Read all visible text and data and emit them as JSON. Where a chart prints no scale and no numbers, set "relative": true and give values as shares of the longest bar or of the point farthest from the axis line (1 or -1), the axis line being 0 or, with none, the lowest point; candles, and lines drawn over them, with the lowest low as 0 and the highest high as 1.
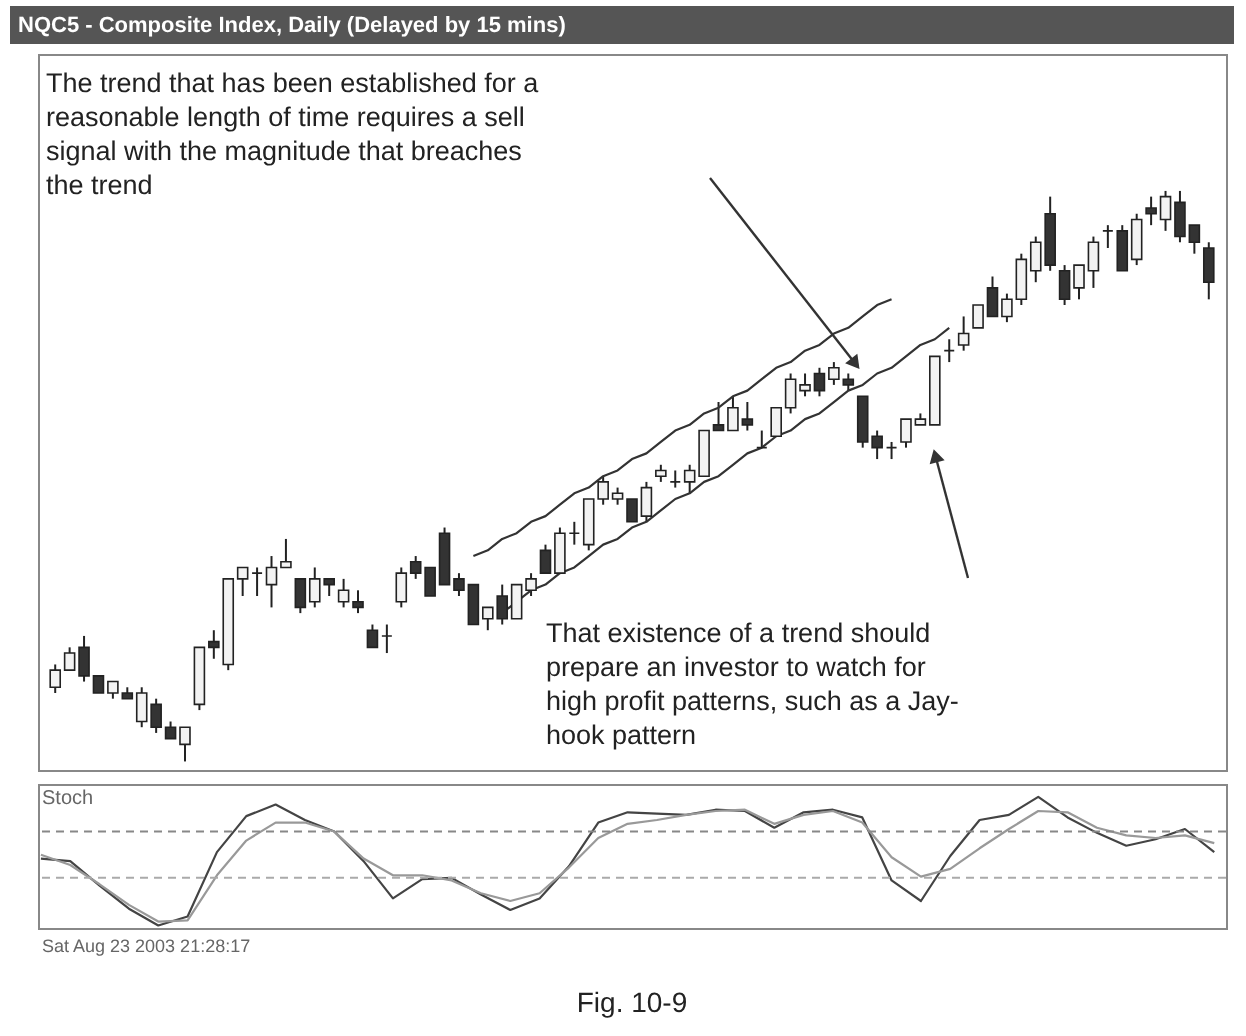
{
  "chart_data": [
    {
      "type": "candlestick",
      "title": "NQC5 - Composite Index, Daily (Delayed by 15 mins)",
      "relative": true,
      "categories": [
        null,
        null,
        null,
        null,
        null,
        null,
        null,
        null,
        null,
        null,
        null,
        null,
        null,
        null,
        null,
        null,
        null,
        null,
        null,
        null,
        null,
        null,
        null,
        null,
        null,
        null,
        null,
        null,
        null,
        null,
        null,
        null,
        null,
        null,
        null,
        null,
        null,
        null,
        null,
        null,
        null,
        null,
        null,
        null,
        null,
        null,
        null,
        null,
        null,
        null,
        null,
        null,
        null,
        null,
        null,
        null,
        null,
        null,
        null,
        null,
        null,
        null,
        null,
        null,
        null,
        null,
        null,
        null,
        null,
        null,
        null,
        null,
        null,
        null,
        null,
        null,
        null,
        null,
        null,
        null,
        null
      ],
      "ohlc": [
        [
          0.13,
          0.17,
          0.12,
          0.16
        ],
        [
          0.16,
          0.2,
          0.16,
          0.19
        ],
        [
          0.2,
          0.22,
          0.14,
          0.15
        ],
        [
          0.15,
          0.15,
          0.12,
          0.12
        ],
        [
          0.12,
          0.14,
          0.11,
          0.14
        ],
        [
          0.12,
          0.13,
          0.11,
          0.11
        ],
        [
          0.07,
          0.13,
          0.06,
          0.12
        ],
        [
          0.1,
          0.11,
          0.05,
          0.06
        ],
        [
          0.06,
          0.07,
          0.04,
          0.04
        ],
        [
          0.03,
          0.06,
          0.0,
          0.06
        ],
        [
          0.1,
          0.2,
          0.09,
          0.2
        ],
        [
          0.21,
          0.23,
          0.18,
          0.2
        ],
        [
          0.17,
          0.32,
          0.16,
          0.32
        ],
        [
          0.32,
          0.34,
          0.29,
          0.34
        ],
        [
          0.33,
          0.34,
          0.29,
          0.33
        ],
        [
          0.31,
          0.36,
          0.27,
          0.34
        ],
        [
          0.34,
          0.39,
          0.34,
          0.35
        ],
        [
          0.32,
          0.32,
          0.26,
          0.27
        ],
        [
          0.28,
          0.34,
          0.27,
          0.32
        ],
        [
          0.32,
          0.32,
          0.29,
          0.31
        ],
        [
          0.28,
          0.32,
          0.27,
          0.3
        ],
        [
          0.28,
          0.3,
          0.26,
          0.27
        ],
        [
          0.23,
          0.24,
          0.2,
          0.2
        ],
        [
          0.22,
          0.24,
          0.19,
          0.22
        ],
        [
          0.28,
          0.34,
          0.27,
          0.33
        ],
        [
          0.35,
          0.36,
          0.32,
          0.33
        ],
        [
          0.34,
          0.34,
          0.29,
          0.29
        ],
        [
          0.4,
          0.41,
          0.31,
          0.31
        ],
        [
          0.32,
          0.33,
          0.29,
          0.3
        ],
        [
          0.31,
          0.31,
          0.24,
          0.24
        ],
        [
          0.25,
          0.27,
          0.23,
          0.27
        ],
        [
          0.29,
          0.31,
          0.24,
          0.25
        ],
        [
          0.25,
          0.31,
          0.25,
          0.31
        ],
        [
          0.3,
          0.33,
          0.29,
          0.32
        ],
        [
          0.37,
          0.38,
          0.33,
          0.33
        ],
        [
          0.33,
          0.41,
          0.33,
          0.4
        ],
        [
          0.4,
          0.42,
          0.38,
          0.4
        ],
        [
          0.38,
          0.46,
          0.37,
          0.46
        ],
        [
          0.46,
          0.5,
          0.45,
          0.49
        ],
        [
          0.46,
          0.48,
          0.45,
          0.47
        ],
        [
          0.46,
          0.46,
          0.42,
          0.42
        ],
        [
          0.43,
          0.49,
          0.42,
          0.48
        ],
        [
          0.5,
          0.52,
          0.49,
          0.51
        ],
        [
          0.49,
          0.51,
          0.48,
          0.49
        ],
        [
          0.49,
          0.52,
          0.47,
          0.51
        ],
        [
          0.5,
          0.58,
          0.5,
          0.58
        ],
        [
          0.59,
          0.63,
          0.58,
          0.58
        ],
        [
          0.58,
          0.64,
          0.58,
          0.62
        ],
        [
          0.6,
          0.63,
          0.58,
          0.59
        ],
        [
          0.55,
          0.58,
          0.55,
          0.55
        ],
        [
          0.57,
          0.62,
          0.57,
          0.62
        ],
        [
          0.62,
          0.68,
          0.61,
          0.67
        ],
        [
          0.65,
          0.68,
          0.64,
          0.66
        ],
        [
          0.68,
          0.69,
          0.64,
          0.65
        ],
        [
          0.67,
          0.7,
          0.66,
          0.69
        ],
        [
          0.67,
          0.68,
          0.65,
          0.66
        ],
        [
          0.64,
          0.64,
          0.55,
          0.56
        ],
        [
          0.57,
          0.58,
          0.53,
          0.55
        ],
        [
          0.55,
          0.56,
          0.53,
          0.55
        ],
        [
          0.56,
          0.6,
          0.55,
          0.6
        ],
        [
          0.59,
          0.61,
          0.59,
          0.6
        ],
        [
          0.59,
          0.71,
          0.59,
          0.71
        ],
        [
          0.72,
          0.74,
          0.7,
          0.72
        ],
        [
          0.73,
          0.78,
          0.72,
          0.75
        ],
        [
          0.76,
          0.8,
          0.76,
          0.8
        ],
        [
          0.83,
          0.85,
          0.78,
          0.78
        ],
        [
          0.78,
          0.82,
          0.77,
          0.81
        ],
        [
          0.81,
          0.89,
          0.8,
          0.88
        ],
        [
          0.86,
          0.92,
          0.84,
          0.91
        ],
        [
          0.96,
          0.99,
          0.86,
          0.87
        ],
        [
          0.86,
          0.87,
          0.8,
          0.81
        ],
        [
          0.83,
          0.87,
          0.81,
          0.87
        ],
        [
          0.86,
          0.92,
          0.83,
          0.91
        ],
        [
          0.93,
          0.94,
          0.9,
          0.93
        ],
        [
          0.93,
          0.94,
          0.86,
          0.86
        ],
        [
          0.88,
          0.96,
          0.87,
          0.95
        ],
        [
          0.97,
          0.99,
          0.94,
          0.96
        ],
        [
          0.95,
          1.0,
          0.93,
          0.99
        ],
        [
          0.98,
          1.0,
          0.91,
          0.92
        ],
        [
          0.94,
          0.94,
          0.89,
          0.91
        ],
        [
          0.9,
          0.91,
          0.81,
          0.84
        ]
      ],
      "series": [
        {
          "type": "line",
          "color": "#333333",
          "values": [
            null,
            null,
            null,
            null,
            null,
            null,
            null,
            null,
            null,
            null,
            null,
            null,
            null,
            null,
            null,
            null,
            null,
            null,
            null,
            null,
            null,
            null,
            null,
            null,
            null,
            null,
            null,
            null,
            null,
            0.36,
            0.37,
            0.39,
            0.4,
            0.42,
            0.43,
            0.45,
            0.47,
            0.48,
            0.5,
            0.51,
            0.53,
            0.54,
            0.56,
            0.58,
            0.59,
            0.61,
            0.62,
            0.64,
            0.65,
            0.67,
            0.69,
            0.7,
            0.72,
            0.73,
            0.75,
            0.76,
            0.78,
            0.8,
            0.81,
            null,
            null,
            null,
            null,
            null,
            null,
            null,
            null,
            null,
            null,
            null,
            null,
            null,
            null,
            null,
            null,
            null,
            null,
            null,
            null,
            null,
            null
          ]
        },
        {
          "type": "line",
          "color": "#333333",
          "values": [
            null,
            null,
            null,
            null,
            null,
            null,
            null,
            null,
            null,
            null,
            null,
            null,
            null,
            null,
            null,
            null,
            null,
            null,
            null,
            null,
            null,
            null,
            null,
            null,
            null,
            null,
            null,
            null,
            null,
            null,
            null,
            0.26,
            0.28,
            0.3,
            0.31,
            0.33,
            0.34,
            0.36,
            0.38,
            0.39,
            0.41,
            0.42,
            0.44,
            0.46,
            0.47,
            0.49,
            0.5,
            0.52,
            0.54,
            0.55,
            0.57,
            0.58,
            0.6,
            0.61,
            0.63,
            0.65,
            0.66,
            0.68,
            0.69,
            0.71,
            0.73,
            0.74,
            0.76,
            null,
            null,
            null,
            null,
            null,
            null,
            null,
            null,
            null,
            null,
            null,
            null,
            null,
            null,
            null,
            null,
            null,
            null
          ]
        }
      ],
      "annotations": [
        "The trend that has been established for a reasonable length of time requires a sell signal with the magnitude that breaches the trend",
        "That existence of a trend should prepare an investor to watch for high profit patterns, such as a Jay-hook pattern"
      ]
    },
    {
      "type": "line",
      "title": "Stoch",
      "relative": true,
      "line_style": "solid",
      "categories": [
        null,
        null,
        null,
        null,
        null,
        null,
        null,
        null,
        null,
        null,
        null,
        null,
        null,
        null,
        null,
        null,
        null,
        null,
        null,
        null,
        null,
        null,
        null,
        null,
        null,
        null,
        null,
        null,
        null,
        null,
        null,
        null,
        null,
        null,
        null,
        null,
        null,
        null,
        null,
        null,
        null
      ],
      "series": [
        {
          "color": "#444444",
          "values": [
            0.52,
            0.5,
            0.31,
            0.13,
            0,
            0.07,
            0.57,
            0.85,
            0.94,
            0.82,
            0.73,
            0.5,
            0.21,
            0.36,
            0.37,
            0.24,
            0.12,
            0.21,
            0.46,
            0.8,
            0.88,
            0.87,
            0.86,
            0.9,
            0.89,
            0.76,
            0.88,
            0.9,
            0.84,
            0.35,
            0.19,
            0.54,
            0.82,
            0.86,
            1,
            0.84,
            0.72,
            0.62,
            0.67,
            0.75,
            0.57
          ]
        },
        {
          "color": "#999999",
          "values": [
            0.55,
            0.47,
            0.32,
            0.16,
            0.03,
            0.04,
            0.39,
            0.66,
            0.8,
            0.8,
            0.73,
            0.52,
            0.39,
            0.39,
            0.35,
            0.25,
            0.19,
            0.25,
            0.45,
            0.68,
            0.79,
            0.82,
            0.86,
            0.89,
            0.9,
            0.79,
            0.86,
            0.89,
            0.8,
            0.53,
            0.38,
            0.44,
            0.6,
            0.75,
            0.89,
            0.88,
            0.76,
            0.7,
            0.68,
            0.7,
            0.64
          ]
        }
      ],
      "ref_lines": [
        {
          "axis": "y",
          "value": 0.73,
          "color": "#888888",
          "line_style": "dashed"
        },
        {
          "axis": "y",
          "value": 0.37,
          "color": "#aaaaaa",
          "line_style": "dashed"
        }
      ],
      "annotations": [
        "Sat Aug 23 2003 21:28:17",
        "Fig. 10-9"
      ]
    }
  ]
}
